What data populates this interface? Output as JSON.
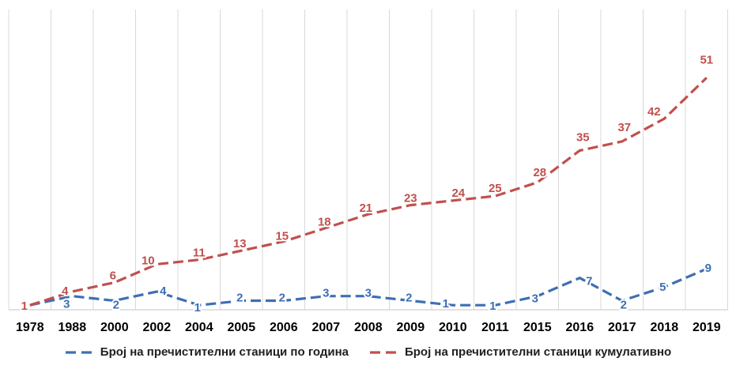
{
  "chart_data": {
    "type": "line",
    "title": "",
    "xlabel": "",
    "ylabel": "",
    "categories": [
      "1978",
      "1988",
      "2000",
      "2002",
      "2004",
      "2005",
      "2006",
      "2007",
      "2008",
      "2009",
      "2010",
      "2011",
      "2015",
      "2016",
      "2017",
      "2018",
      "2019"
    ],
    "series": [
      {
        "name": "Број на пречистителни станици по година",
        "id": "per-year",
        "color": "#3E6FB4",
        "line_style": "dashed",
        "values": [
          1,
          3,
          2,
          4,
          1,
          2,
          2,
          3,
          3,
          2,
          1,
          1,
          3,
          7,
          2,
          5,
          9
        ],
        "label_offsets": [
          null,
          [
            -7,
            15
          ],
          [
            2,
            10
          ],
          [
            8,
            4
          ],
          [
            -2,
            8
          ],
          [
            -2,
            1
          ],
          [
            -2,
            1
          ],
          [
            0,
            1
          ],
          [
            0,
            1
          ],
          [
            -2,
            1
          ],
          [
            -9,
            3
          ],
          [
            -3,
            6
          ],
          [
            -3,
            8
          ],
          [
            12,
            9
          ],
          [
            2,
            10
          ],
          [
            -2,
            5
          ],
          [
            2,
            4
          ]
        ]
      },
      {
        "name": "Број на пречистителни станици кумулативно",
        "id": "cumulative",
        "color": "#C0504D",
        "line_style": "dashed",
        "values": [
          1,
          4,
          6,
          10,
          11,
          13,
          15,
          18,
          21,
          23,
          24,
          25,
          28,
          35,
          37,
          42,
          51
        ],
        "label_offsets": [
          [
            -7,
            6
          ],
          [
            -9,
            4
          ],
          [
            -2,
            -4
          ],
          [
            -11,
            0
          ],
          [
            0,
            -4
          ],
          [
            -2,
            -4
          ],
          [
            -2,
            -2
          ],
          [
            -2,
            -3
          ],
          [
            -3,
            -3
          ],
          [
            0,
            -4
          ],
          [
            7,
            -5
          ],
          [
            0,
            -5
          ],
          [
            3,
            -8
          ],
          [
            4,
            -12
          ],
          [
            3,
            -13
          ],
          [
            -13,
            -4
          ],
          [
            0,
            -18
          ]
        ]
      }
    ],
    "ylim": [
      0,
      66
    ],
    "grid": "vertical-only",
    "data_labels": true,
    "legend_position": "bottom"
  },
  "colors": {
    "background": "#FFFFFF",
    "grid": "#D9D9D9",
    "axis": "#C6C6C6",
    "tick_label": "#000000",
    "legend_text": "#202020"
  }
}
